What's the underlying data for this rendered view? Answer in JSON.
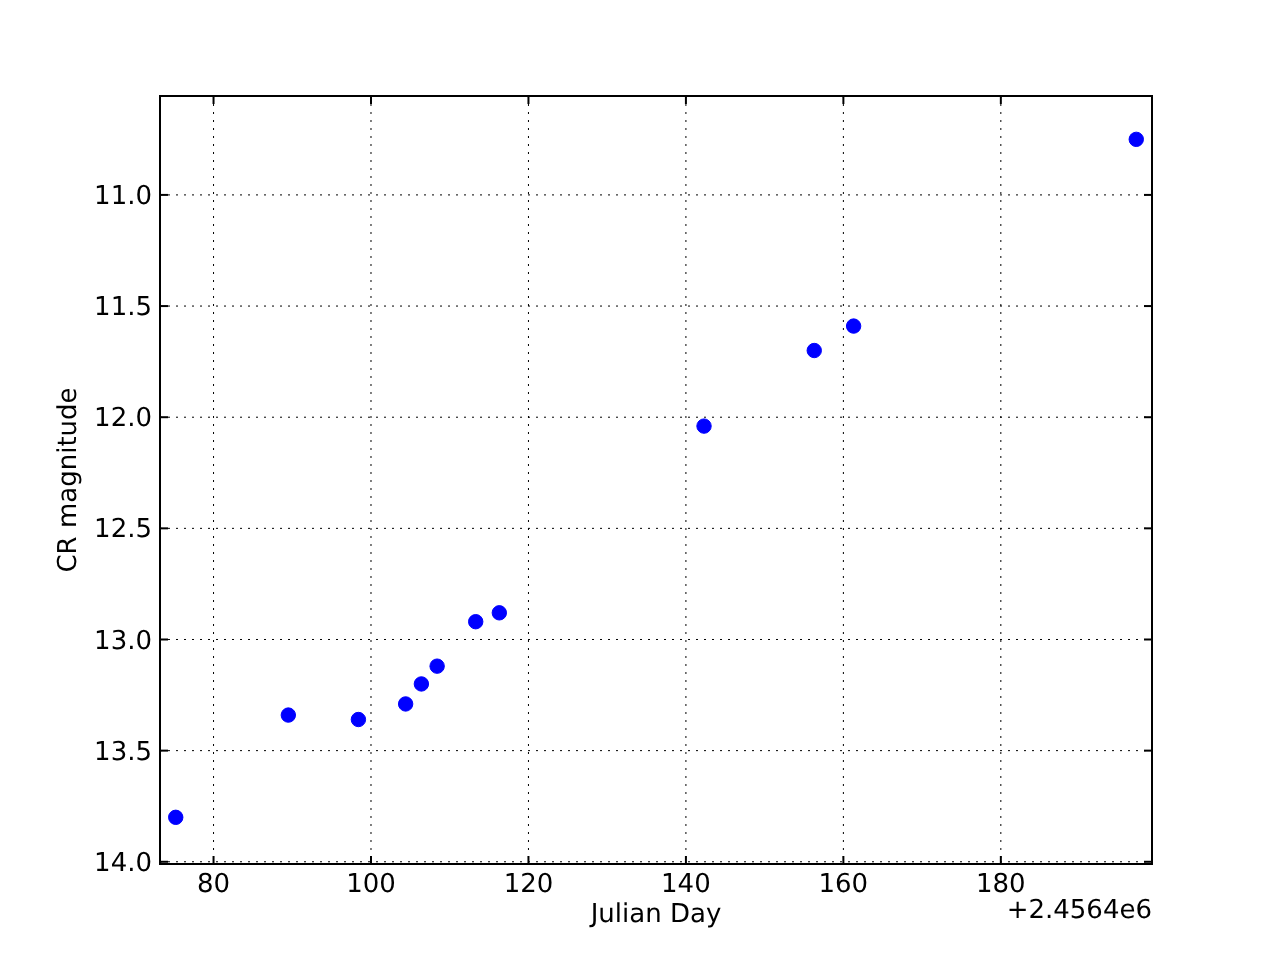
{
  "chart_data": {
    "type": "scatter",
    "xlabel": "Julian Day",
    "ylabel": "CR magnitude",
    "annotations": [
      "+2.4564e6"
    ],
    "x": [
      75.2,
      89.5,
      98.4,
      104.4,
      106.4,
      108.4,
      113.3,
      116.3,
      142.3,
      156.3,
      161.3,
      197.2
    ],
    "values": [
      13.8,
      13.34,
      13.36,
      13.29,
      13.2,
      13.12,
      12.92,
      12.88,
      12.04,
      11.7,
      11.59,
      10.75
    ],
    "color": "#0000ff",
    "marker": "circle",
    "grid": true,
    "xlim": [
      73.2,
      199.2
    ],
    "ylim": [
      14.01,
      10.555
    ],
    "xticks": [
      80,
      100,
      120,
      140,
      160,
      180
    ],
    "yticks": [
      {
        "value": 11,
        "label": "11.0"
      },
      11.5,
      {
        "value": 12,
        "label": "12.0"
      },
      12.5,
      {
        "value": 13,
        "label": "13.0"
      },
      13.5,
      {
        "value": 14,
        "label": "14.0"
      }
    ]
  }
}
